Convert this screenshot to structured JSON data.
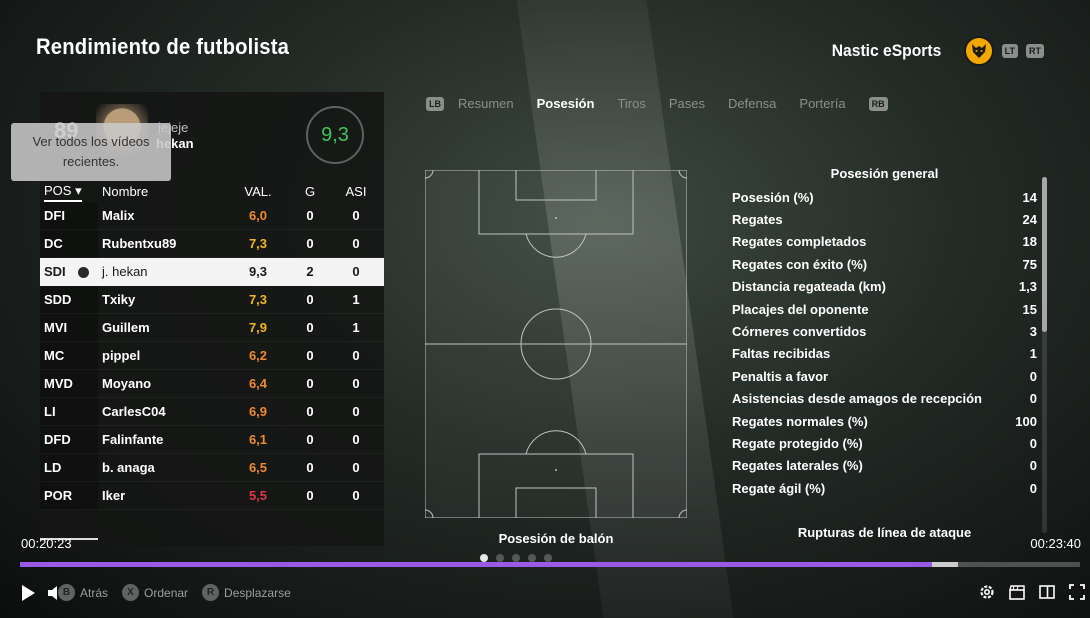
{
  "header": {
    "title": "Rendimiento de futbolista",
    "club_name": "Nastic eSports",
    "crest_icon": "wolf-crest-icon",
    "lt_label": "LT",
    "rt_label": "RT"
  },
  "player_card": {
    "overall": "89",
    "first_name": "jejeje",
    "last_name": "hekan",
    "rating": "9,3",
    "rating_color": "#3fc35a"
  },
  "tooltip": {
    "text": "Ver todos los vídeos recientes."
  },
  "table": {
    "headers": {
      "pos": "POS",
      "name": "Nombre",
      "val": "VAL.",
      "g": "G",
      "asi": "ASI"
    },
    "rows": [
      {
        "pos": "DFI",
        "name": "Malix",
        "val": "6,0",
        "g": "0",
        "asi": "0",
        "color": "#f08a2a"
      },
      {
        "pos": "DC",
        "name": "Rubentxu89",
        "val": "7,3",
        "g": "0",
        "asi": "0",
        "color": "#f2b51c"
      },
      {
        "pos": "SDI",
        "name": "j. hekan",
        "val": "9,3",
        "g": "2",
        "asi": "0",
        "color": "#1a1a1a"
      },
      {
        "pos": "SDD",
        "name": "Txiky",
        "val": "7,3",
        "g": "0",
        "asi": "1",
        "color": "#f2b51c"
      },
      {
        "pos": "MVI",
        "name": "Guillem",
        "val": "7,9",
        "g": "0",
        "asi": "1",
        "color": "#f2b51c"
      },
      {
        "pos": "MC",
        "name": "pippel",
        "val": "6,2",
        "g": "0",
        "asi": "0",
        "color": "#f08a2a"
      },
      {
        "pos": "MVD",
        "name": "Moyano",
        "val": "6,4",
        "g": "0",
        "asi": "0",
        "color": "#f08a2a"
      },
      {
        "pos": "LI",
        "name": "CarlesC04",
        "val": "6,9",
        "g": "0",
        "asi": "0",
        "color": "#f08a2a"
      },
      {
        "pos": "DFD",
        "name": "Falinfante",
        "val": "6,1",
        "g": "0",
        "asi": "0",
        "color": "#f08a2a"
      },
      {
        "pos": "LD",
        "name": "b. anaga",
        "val": "6,5",
        "g": "0",
        "asi": "0",
        "color": "#f08a2a"
      },
      {
        "pos": "POR",
        "name": "Iker",
        "val": "5,5",
        "g": "0",
        "asi": "0",
        "color": "#e0344a"
      }
    ]
  },
  "tabs": {
    "lb_label": "LB",
    "rb_label": "RB",
    "items": [
      {
        "label": "Resumen"
      },
      {
        "label": "Posesión"
      },
      {
        "label": "Tiros"
      },
      {
        "label": "Pases"
      },
      {
        "label": "Defensa"
      },
      {
        "label": "Portería"
      }
    ]
  },
  "pitch": {
    "caption": "Posesión de balón"
  },
  "stats": {
    "title": "Posesión general",
    "items": [
      {
        "label": "Posesión (%)",
        "value": "14"
      },
      {
        "label": "Regates",
        "value": "24"
      },
      {
        "label": "Regates completados",
        "value": "18"
      },
      {
        "label": "Regates con éxito (%)",
        "value": "75"
      },
      {
        "label": "Distancia regateada (km)",
        "value": "1,3"
      },
      {
        "label": "Placajes del oponente",
        "value": "15"
      },
      {
        "label": "Córneres convertidos",
        "value": "3"
      },
      {
        "label": "Faltas recibidas",
        "value": "1"
      },
      {
        "label": "Penaltis a favor",
        "value": "0"
      },
      {
        "label": "Asistencias desde amagos de recepción",
        "value": "0"
      },
      {
        "label": "Regates normales (%)",
        "value": "100"
      },
      {
        "label": "Regate protegido (%)",
        "value": "0"
      },
      {
        "label": "Regates laterales (%)",
        "value": "0"
      },
      {
        "label": "Regate ágil (%)",
        "value": "0"
      }
    ],
    "next_section": "Rupturas de línea de ataque"
  },
  "video": {
    "current_time": "00:20:23",
    "duration": "00:23:40",
    "progress_fraction": 0.86,
    "buffer_fraction": 0.885,
    "accent": "#9b59e8"
  },
  "controller_hints": [
    {
      "button": "B",
      "label": "Atrás"
    },
    {
      "button": "X",
      "label": "Ordenar"
    },
    {
      "button": "R",
      "label": "Desplazarse"
    }
  ]
}
